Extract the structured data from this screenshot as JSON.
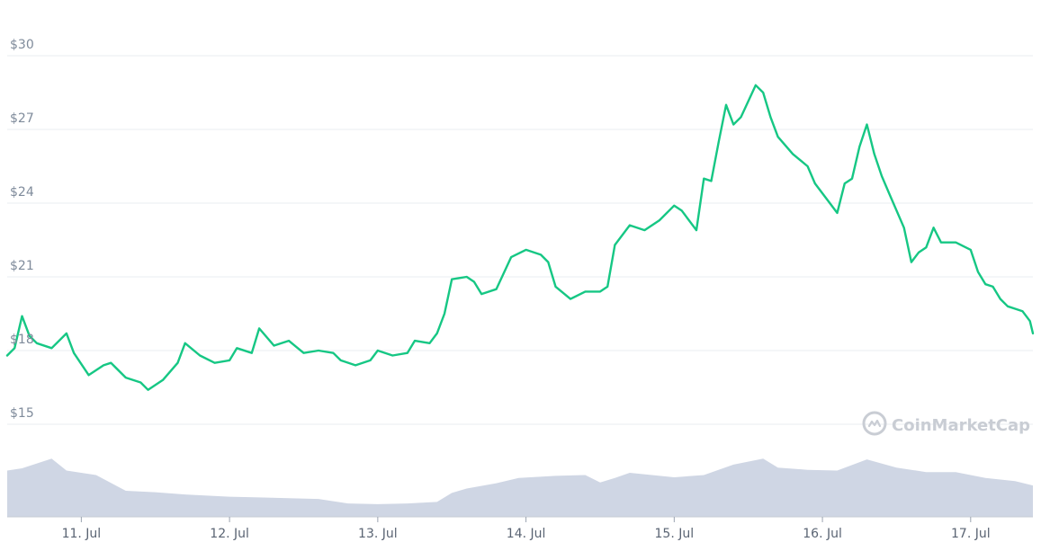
{
  "chart_data": {
    "type": "line",
    "title": "",
    "xlabel": "",
    "ylabel": "",
    "y_tick_labels": [
      "$15",
      "$18",
      "$21",
      "$24",
      "$27",
      "$30"
    ],
    "y_ticks": [
      15,
      18,
      21,
      24,
      27,
      30
    ],
    "ylim": [
      15,
      30
    ],
    "x_tick_labels": [
      "11. Jul",
      "12. Jul",
      "13. Jul",
      "14. Jul",
      "15. Jul",
      "16. Jul",
      "17. Jul"
    ],
    "x_ticks": [
      1,
      2,
      3,
      4,
      5,
      6,
      7
    ],
    "xlim": [
      0.5,
      7.42
    ],
    "grid": true,
    "series": [
      {
        "values": [
          [
            0.5,
            17.8
          ],
          [
            0.55,
            18.1
          ],
          [
            0.6,
            19.4
          ],
          [
            0.65,
            18.6
          ],
          [
            0.7,
            18.3
          ],
          [
            0.8,
            18.1
          ],
          [
            0.9,
            18.7
          ],
          [
            0.95,
            17.9
          ],
          [
            1.05,
            17.0
          ],
          [
            1.15,
            17.4
          ],
          [
            1.2,
            17.5
          ],
          [
            1.3,
            16.9
          ],
          [
            1.4,
            16.7
          ],
          [
            1.45,
            16.4
          ],
          [
            1.55,
            16.8
          ],
          [
            1.65,
            17.5
          ],
          [
            1.7,
            18.3
          ],
          [
            1.8,
            17.8
          ],
          [
            1.9,
            17.5
          ],
          [
            2.0,
            17.6
          ],
          [
            2.05,
            18.1
          ],
          [
            2.15,
            17.9
          ],
          [
            2.2,
            18.9
          ],
          [
            2.3,
            18.2
          ],
          [
            2.4,
            18.4
          ],
          [
            2.5,
            17.9
          ],
          [
            2.6,
            18.0
          ],
          [
            2.7,
            17.9
          ],
          [
            2.75,
            17.6
          ],
          [
            2.85,
            17.4
          ],
          [
            2.95,
            17.6
          ],
          [
            3.0,
            18.0
          ],
          [
            3.1,
            17.8
          ],
          [
            3.2,
            17.9
          ],
          [
            3.25,
            18.4
          ],
          [
            3.35,
            18.3
          ],
          [
            3.4,
            18.7
          ],
          [
            3.45,
            19.5
          ],
          [
            3.5,
            20.9
          ],
          [
            3.6,
            21.0
          ],
          [
            3.65,
            20.8
          ],
          [
            3.7,
            20.3
          ],
          [
            3.8,
            20.5
          ],
          [
            3.9,
            21.8
          ],
          [
            4.0,
            22.1
          ],
          [
            4.1,
            21.9
          ],
          [
            4.15,
            21.6
          ],
          [
            4.2,
            20.6
          ],
          [
            4.3,
            20.1
          ],
          [
            4.4,
            20.4
          ],
          [
            4.5,
            20.4
          ],
          [
            4.55,
            20.6
          ],
          [
            4.6,
            22.3
          ],
          [
            4.7,
            23.1
          ],
          [
            4.8,
            22.9
          ],
          [
            4.9,
            23.3
          ],
          [
            5.0,
            23.9
          ],
          [
            5.05,
            23.7
          ],
          [
            5.15,
            22.9
          ],
          [
            5.2,
            25.0
          ],
          [
            5.25,
            24.9
          ],
          [
            5.3,
            26.5
          ],
          [
            5.35,
            28.0
          ],
          [
            5.4,
            27.2
          ],
          [
            5.45,
            27.5
          ],
          [
            5.55,
            28.8
          ],
          [
            5.6,
            28.5
          ],
          [
            5.65,
            27.5
          ],
          [
            5.7,
            26.7
          ],
          [
            5.8,
            26.0
          ],
          [
            5.9,
            25.5
          ],
          [
            5.95,
            24.8
          ],
          [
            6.05,
            24.0
          ],
          [
            6.1,
            23.6
          ],
          [
            6.15,
            24.8
          ],
          [
            6.2,
            25.0
          ],
          [
            6.25,
            26.3
          ],
          [
            6.3,
            27.2
          ],
          [
            6.35,
            26.0
          ],
          [
            6.4,
            25.1
          ],
          [
            6.45,
            24.4
          ],
          [
            6.55,
            23.0
          ],
          [
            6.6,
            21.6
          ],
          [
            6.65,
            22.0
          ],
          [
            6.7,
            22.2
          ],
          [
            6.75,
            23.0
          ],
          [
            6.8,
            22.4
          ],
          [
            6.9,
            22.4
          ],
          [
            7.0,
            22.1
          ],
          [
            7.05,
            21.2
          ],
          [
            7.1,
            20.7
          ],
          [
            7.15,
            20.6
          ],
          [
            7.2,
            20.1
          ],
          [
            7.25,
            19.8
          ],
          [
            7.3,
            19.7
          ],
          [
            7.35,
            19.6
          ],
          [
            7.4,
            19.2
          ],
          [
            7.42,
            18.7
          ]
        ]
      }
    ],
    "volume_series": {
      "values": [
        [
          0.5,
          0.62
        ],
        [
          0.6,
          0.65
        ],
        [
          0.8,
          0.78
        ],
        [
          0.9,
          0.62
        ],
        [
          1.1,
          0.56
        ],
        [
          1.3,
          0.35
        ],
        [
          1.5,
          0.33
        ],
        [
          1.7,
          0.3
        ],
        [
          2.0,
          0.27
        ],
        [
          2.2,
          0.26
        ],
        [
          2.6,
          0.24
        ],
        [
          2.8,
          0.18
        ],
        [
          3.0,
          0.17
        ],
        [
          3.2,
          0.18
        ],
        [
          3.4,
          0.2
        ],
        [
          3.5,
          0.32
        ],
        [
          3.6,
          0.38
        ],
        [
          3.8,
          0.45
        ],
        [
          3.95,
          0.52
        ],
        [
          4.2,
          0.55
        ],
        [
          4.4,
          0.56
        ],
        [
          4.5,
          0.46
        ],
        [
          4.6,
          0.52
        ],
        [
          4.7,
          0.59
        ],
        [
          5.0,
          0.53
        ],
        [
          5.2,
          0.56
        ],
        [
          5.4,
          0.7
        ],
        [
          5.6,
          0.78
        ],
        [
          5.7,
          0.66
        ],
        [
          5.9,
          0.63
        ],
        [
          6.1,
          0.62
        ],
        [
          6.3,
          0.77
        ],
        [
          6.5,
          0.66
        ],
        [
          6.7,
          0.6
        ],
        [
          6.9,
          0.6
        ],
        [
          7.1,
          0.52
        ],
        [
          7.3,
          0.48
        ],
        [
          7.42,
          0.42
        ]
      ]
    },
    "colors": {
      "line": "#16c784",
      "volume": "#cfd6e4",
      "grid": "#eaedf1",
      "tick_y": "#7f8b9b",
      "tick_x": "#5a6473",
      "watermark": "#c9cdd4"
    }
  },
  "watermark": {
    "text": "CoinMarketCap",
    "icon": "coinmarketcap-logo-icon"
  }
}
